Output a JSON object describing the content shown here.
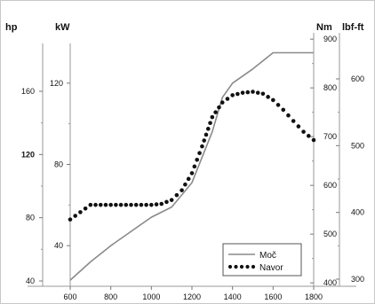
{
  "chart_data": {
    "type": "line",
    "xlim": [
      600,
      1800
    ],
    "x_ticks": [
      600,
      800,
      1000,
      1200,
      1400,
      1600,
      1800
    ],
    "axes": {
      "hp": {
        "label": "hp",
        "ticks": [
          40,
          80,
          120,
          160
        ],
        "bold_ticks": [
          120
        ]
      },
      "kw": {
        "label": "kW",
        "ticks": [
          40,
          80,
          120
        ]
      },
      "nm": {
        "label": "Nm",
        "ticks": [
          400,
          500,
          600,
          700,
          800,
          900
        ]
      },
      "lbfft": {
        "label": "lbf-ft",
        "ticks": [
          300,
          400,
          500,
          600
        ]
      }
    },
    "ylim_kw": [
      20,
      140
    ],
    "ylim_nm": [
      393,
      893
    ],
    "series": [
      {
        "name": "Moč",
        "axis": "kw",
        "color": "#8a8a8a",
        "style": "solid",
        "x": [
          600,
          700,
          800,
          900,
          1000,
          1100,
          1200,
          1300,
          1350,
          1400,
          1500,
          1600,
          1700,
          1800
        ],
        "y": [
          23,
          32,
          40,
          47,
          54,
          59,
          71,
          96,
          113,
          120,
          127,
          135,
          135,
          135
        ]
      },
      {
        "name": "Navor",
        "axis": "nm",
        "color": "#111111",
        "style": "dotted",
        "x": [
          600,
          650,
          700,
          750,
          800,
          850,
          900,
          950,
          1000,
          1050,
          1100,
          1150,
          1200,
          1250,
          1300,
          1350,
          1400,
          1450,
          1500,
          1550,
          1600,
          1650,
          1700,
          1750,
          1800
        ],
        "y": [
          530,
          545,
          560,
          560,
          560,
          560,
          560,
          560,
          560,
          562,
          570,
          590,
          625,
          680,
          740,
          770,
          785,
          790,
          792,
          788,
          775,
          755,
          732,
          710,
          693
        ]
      }
    ],
    "legend": {
      "position": "bottom-right"
    },
    "grid": false
  }
}
